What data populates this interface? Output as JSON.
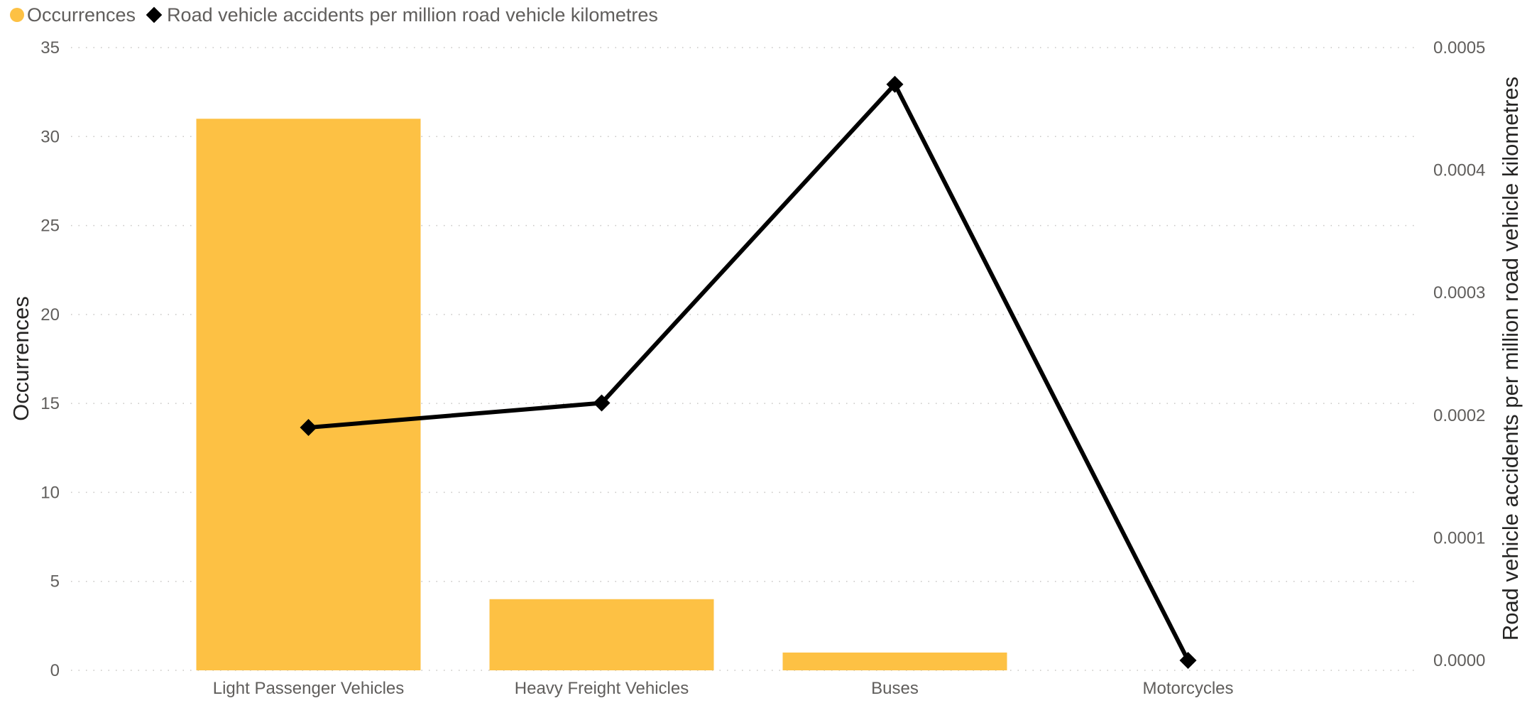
{
  "legend": {
    "items": [
      {
        "label": "Occurrences",
        "shape": "circle",
        "color": "#FDC144"
      },
      {
        "label": "Road vehicle accidents per million road vehicle kilometres",
        "shape": "diamond",
        "color": "#000000"
      }
    ]
  },
  "chart_data": {
    "type": "bar",
    "combo": "bar + line (dual axis)",
    "categories": [
      "Light Passenger Vehicles",
      "Heavy Freight Vehicles",
      "Buses",
      "Motorcycles"
    ],
    "series": [
      {
        "name": "Occurrences",
        "type": "bar",
        "axis": "left",
        "color": "#FDC144",
        "values": [
          31,
          4,
          1,
          0
        ]
      },
      {
        "name": "Road vehicle accidents per million road vehicle kilometres",
        "type": "line",
        "axis": "right",
        "color": "#000000",
        "marker": "diamond",
        "values": [
          0.00019,
          0.00021,
          0.00047,
          0.0
        ]
      }
    ],
    "ylabel": "Occurrences",
    "y2label": "Road vehicle accidents per million road vehicle kilometres",
    "ylim": [
      0,
      35
    ],
    "y2lim": [
      0,
      0.0005
    ],
    "yticks": [
      "0",
      "5",
      "10",
      "15",
      "20",
      "25",
      "30",
      "35"
    ],
    "y2ticks": [
      "0.0000",
      "0.0001",
      "0.0002",
      "0.0003",
      "0.0004",
      "0.0005"
    ],
    "grid": true,
    "legend_position": "top-left"
  }
}
